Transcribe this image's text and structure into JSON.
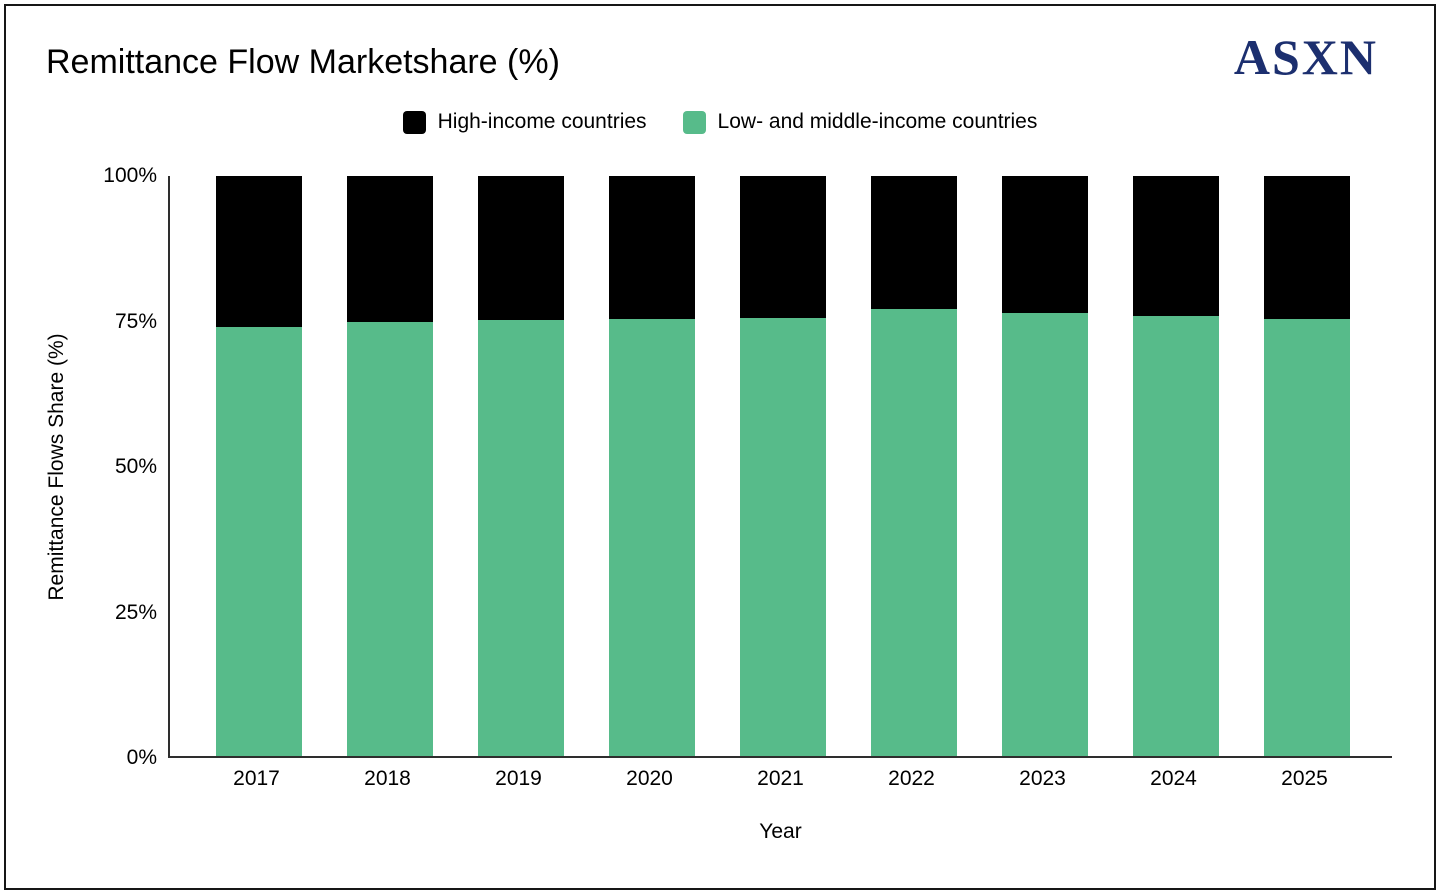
{
  "header": {
    "title": "Remittance Flow Marketshare (%)",
    "logo_text": "ASXN",
    "logo_color": "#1c2f6f"
  },
  "legend": {
    "position": "top",
    "items": [
      {
        "label": "High-income countries",
        "color": "#000000"
      },
      {
        "label": "Low- and middle-income countries",
        "color": "#57bb8a"
      }
    ]
  },
  "chart_data": {
    "type": "bar",
    "stacked": true,
    "title": "Remittance Flow Marketshare (%)",
    "xlabel": "Year",
    "ylabel": "Remittance Flows Share (%)",
    "categories": [
      "2017",
      "2018",
      "2019",
      "2020",
      "2021",
      "2022",
      "2023",
      "2024",
      "2025"
    ],
    "series": [
      {
        "name": "High-income countries",
        "color": "#000000",
        "values": [
          26.0,
          25.1,
          24.8,
          24.6,
          24.4,
          22.9,
          23.6,
          24.1,
          24.6
        ]
      },
      {
        "name": "Low- and middle-income countries",
        "color": "#57bb8a",
        "values": [
          74.0,
          74.9,
          75.2,
          75.4,
          75.6,
          77.1,
          76.4,
          75.9,
          75.4
        ]
      }
    ],
    "ylim": [
      0,
      100
    ],
    "yticks": [
      {
        "label": "0%",
        "value": 0
      },
      {
        "label": "25%",
        "value": 25
      },
      {
        "label": "50%",
        "value": 50
      },
      {
        "label": "75%",
        "value": 75
      },
      {
        "label": "100%",
        "value": 100
      }
    ],
    "grid": false,
    "legend_position": "top"
  }
}
